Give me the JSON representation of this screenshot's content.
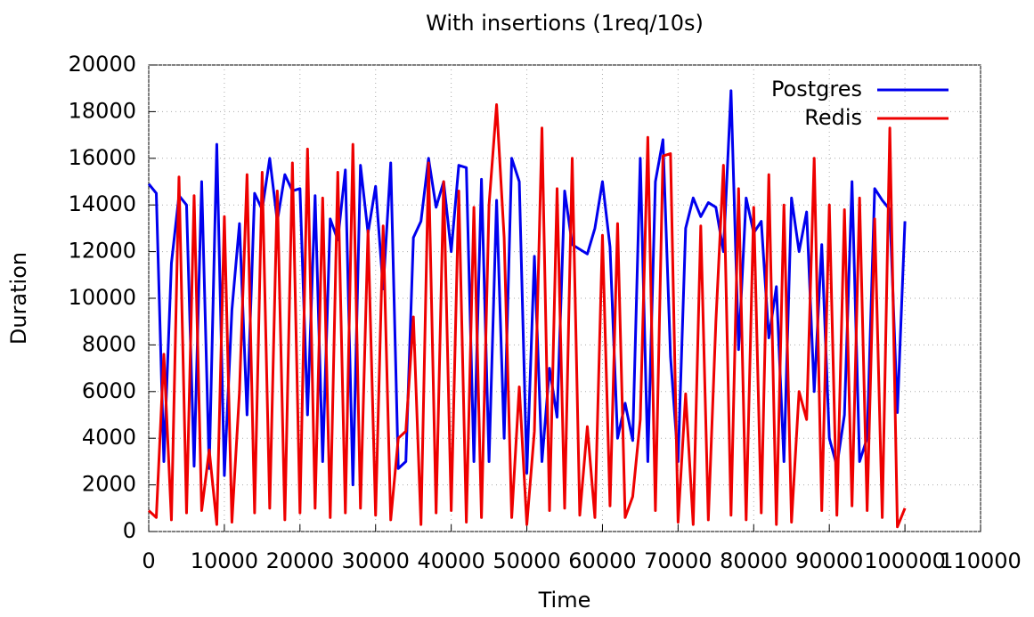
{
  "chart_data": {
    "type": "line",
    "title": "With insertions (1req/10s)",
    "x_label": "Time",
    "y_label": "Duration",
    "xlim": [
      0,
      110000
    ],
    "xticks": [
      0,
      10000,
      20000,
      30000,
      40000,
      50000,
      60000,
      70000,
      80000,
      90000,
      100000,
      110000
    ],
    "ylim": [
      0,
      20000
    ],
    "yticks": [
      0,
      2000,
      4000,
      6000,
      8000,
      10000,
      12000,
      14000,
      16000,
      18000,
      20000
    ],
    "grid": true,
    "legend": "top-right",
    "x": [
      0,
      1000,
      2000,
      3000,
      4000,
      5000,
      6000,
      7000,
      8000,
      9000,
      10000,
      11000,
      12000,
      13000,
      14000,
      15000,
      16000,
      17000,
      18000,
      19000,
      20000,
      21000,
      22000,
      23000,
      24000,
      25000,
      26000,
      27000,
      28000,
      29000,
      30000,
      31000,
      32000,
      33000,
      34000,
      35000,
      36000,
      37000,
      38000,
      39000,
      40000,
      41000,
      42000,
      43000,
      44000,
      45000,
      46000,
      47000,
      48000,
      49000,
      50000,
      51000,
      52000,
      53000,
      54000,
      55000,
      56000,
      57000,
      58000,
      59000,
      60000,
      61000,
      62000,
      63000,
      64000,
      65000,
      66000,
      67000,
      68000,
      69000,
      70000,
      71000,
      72000,
      73000,
      74000,
      75000,
      76000,
      77000,
      78000,
      79000,
      80000,
      81000,
      82000,
      83000,
      84000,
      85000,
      86000,
      87000,
      88000,
      89000,
      90000,
      91000,
      92000,
      93000,
      94000,
      95000,
      96000,
      97000,
      98000,
      99000,
      100000
    ],
    "series": [
      {
        "name": "Postgres",
        "color": "#0000ee",
        "values": [
          14900,
          14500,
          3000,
          11500,
          14400,
          14000,
          2800,
          15000,
          2700,
          16600,
          2400,
          9500,
          13200,
          5000,
          14500,
          13800,
          16000,
          13300,
          15300,
          14600,
          14700,
          5000,
          14400,
          3000,
          13400,
          12500,
          15500,
          2000,
          15700,
          12800,
          14800,
          10400,
          15800,
          2700,
          3000,
          12600,
          13300,
          16000,
          13900,
          15000,
          12000,
          15700,
          15600,
          3000,
          15100,
          3000,
          14200,
          4000,
          16000,
          15000,
          2500,
          11800,
          3000,
          7000,
          4900,
          14600,
          12300,
          12100,
          11900,
          13000,
          15000,
          12200,
          4000,
          5500,
          3900,
          16000,
          3000,
          15000,
          16800,
          7500,
          3000,
          13000,
          14300,
          13500,
          14100,
          13900,
          12000,
          18900,
          7800,
          14300,
          12800,
          13300,
          8300,
          10500,
          3000,
          14300,
          12000,
          13700,
          6000,
          12300,
          4000,
          2800,
          5000,
          15000,
          3000,
          4000,
          14700,
          14200,
          13800,
          5100,
          13300
        ]
      },
      {
        "name": "Redis",
        "color": "#ee0000",
        "values": [
          900,
          600,
          7600,
          500,
          15200,
          800,
          14400,
          900,
          3500,
          300,
          13500,
          400,
          6000,
          15300,
          800,
          15400,
          1000,
          14600,
          500,
          15800,
          800,
          16400,
          1000,
          14300,
          600,
          15400,
          800,
          16600,
          1000,
          12900,
          700,
          13100,
          500,
          4000,
          4300,
          9200,
          300,
          15800,
          800,
          15000,
          900,
          14600,
          400,
          13900,
          600,
          14000,
          18300,
          12600,
          600,
          6200,
          300,
          4300,
          17300,
          900,
          14700,
          1000,
          16000,
          700,
          4500,
          600,
          12700,
          1100,
          13200,
          600,
          1500,
          4800,
          16900,
          900,
          16100,
          16200,
          400,
          5900,
          300,
          13100,
          500,
          9000,
          15700,
          700,
          14700,
          500,
          13900,
          800,
          15300,
          300,
          14000,
          400,
          6000,
          4800,
          16000,
          900,
          14000,
          700,
          13800,
          1100,
          14300,
          900,
          13400,
          600,
          17300,
          200,
          1000
        ]
      }
    ]
  }
}
